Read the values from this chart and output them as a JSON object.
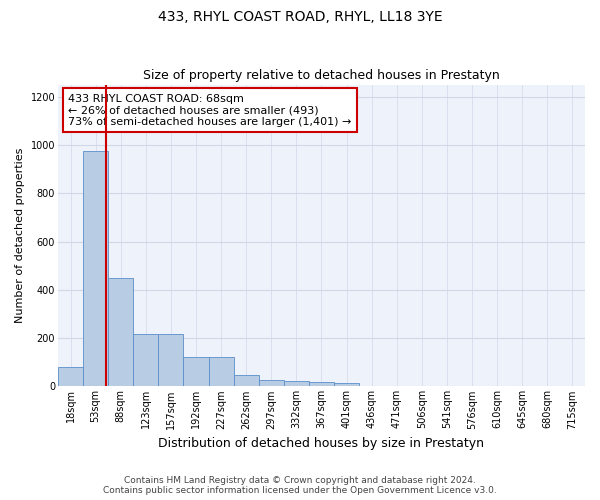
{
  "title": "433, RHYL COAST ROAD, RHYL, LL18 3YE",
  "subtitle": "Size of property relative to detached houses in Prestatyn",
  "xlabel": "Distribution of detached houses by size in Prestatyn",
  "ylabel": "Number of detached properties",
  "bar_labels": [
    "18sqm",
    "53sqm",
    "88sqm",
    "123sqm",
    "157sqm",
    "192sqm",
    "227sqm",
    "262sqm",
    "297sqm",
    "332sqm",
    "367sqm",
    "401sqm",
    "436sqm",
    "471sqm",
    "506sqm",
    "541sqm",
    "576sqm",
    "610sqm",
    "645sqm",
    "680sqm",
    "715sqm"
  ],
  "bar_values": [
    80,
    975,
    450,
    215,
    215,
    120,
    120,
    48,
    25,
    22,
    20,
    12,
    0,
    0,
    0,
    0,
    0,
    0,
    0,
    0,
    0
  ],
  "bar_color": "#b8cce4",
  "bar_edge_color": "#5b8fc9",
  "annotation_text": "433 RHYL COAST ROAD: 68sqm\n← 26% of detached houses are smaller (493)\n73% of semi-detached houses are larger (1,401) →",
  "annotation_box_color": "#ffffff",
  "annotation_box_edge_color": "#cc0000",
  "ylim": [
    0,
    1250
  ],
  "yticks": [
    0,
    200,
    400,
    600,
    800,
    1000,
    1200
  ],
  "grid_color": "#d0d8e8",
  "background_color": "#eef2fa",
  "footer_line1": "Contains HM Land Registry data © Crown copyright and database right 2024.",
  "footer_line2": "Contains public sector information licensed under the Open Government Licence v3.0.",
  "title_fontsize": 10,
  "subtitle_fontsize": 9,
  "xlabel_fontsize": 9,
  "ylabel_fontsize": 8,
  "tick_fontsize": 7,
  "annotation_fontsize": 8,
  "footer_fontsize": 6.5
}
